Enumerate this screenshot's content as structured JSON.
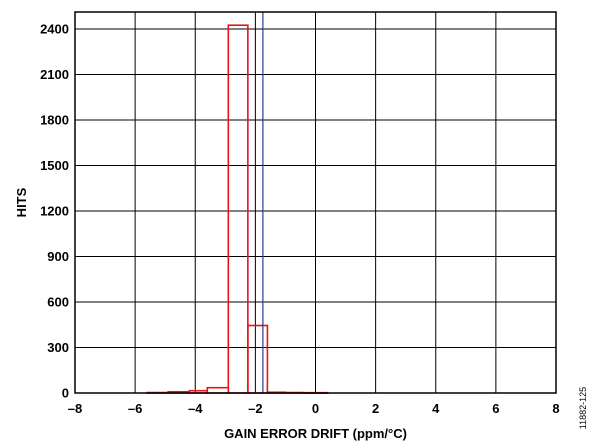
{
  "chart_data": {
    "type": "bar",
    "title": "",
    "xlabel": "GAIN ERROR DRIFT (ppm/°C)",
    "ylabel": "HITS",
    "xlim": [
      -8,
      8
    ],
    "ylim": [
      0,
      2600
    ],
    "xticks": [
      -8,
      -6,
      -4,
      -2,
      0,
      2,
      4,
      6,
      8
    ],
    "xtick_labels": [
      "–8",
      "–6",
      "–4",
      "–2",
      "0",
      "2",
      "4",
      "6",
      "8"
    ],
    "yticks": [
      0,
      300,
      600,
      900,
      1200,
      1500,
      1800,
      2100,
      2400
    ],
    "ytick_labels": [
      "0",
      "300",
      "600",
      "900",
      "1200",
      "1500",
      "1800",
      "2100",
      "2400"
    ],
    "grid": true,
    "bins": [
      {
        "x0": -5.6,
        "x1": -4.9,
        "value": 3
      },
      {
        "x0": -4.9,
        "x1": -4.2,
        "value": 8
      },
      {
        "x0": -4.2,
        "x1": -3.6,
        "value": 15
      },
      {
        "x0": -3.6,
        "x1": -2.9,
        "value": 35
      },
      {
        "x0": -2.9,
        "x1": -2.25,
        "value": 2425
      },
      {
        "x0": -2.25,
        "x1": -1.6,
        "value": 445
      },
      {
        "x0": -1.6,
        "x1": -1.0,
        "value": 5
      },
      {
        "x0": -1.0,
        "x1": -0.4,
        "value": 3
      },
      {
        "x0": -0.4,
        "x1": 0.4,
        "value": 2
      }
    ],
    "series_color": "#e8141c",
    "vline_x": -1.75,
    "vline_color": "#2b3a8c"
  },
  "figure_id": "11882-125"
}
